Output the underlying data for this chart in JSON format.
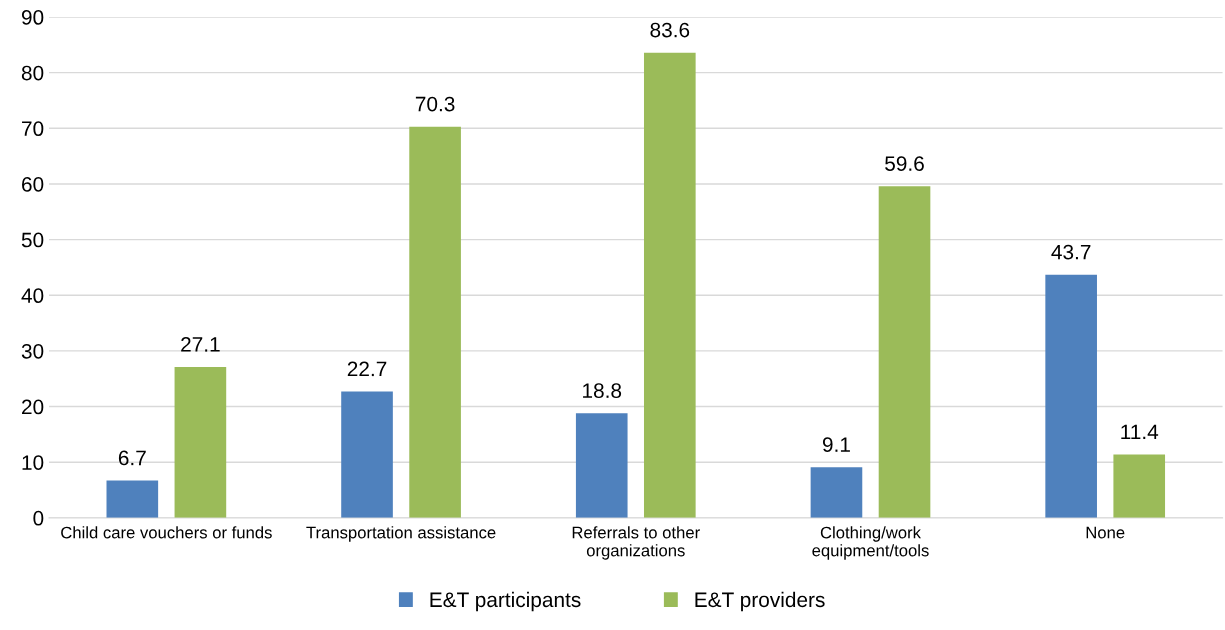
{
  "chart_data": {
    "type": "bar",
    "categories": [
      "Child care vouchers or funds",
      "Transportation assistance",
      "Referrals to other\norganizations",
      "Clothing/work\nequipment/tools",
      "None"
    ],
    "series": [
      {
        "name": "E&T participants",
        "color": "#4f81bd",
        "values": [
          6.7,
          22.7,
          18.8,
          9.1,
          43.7
        ]
      },
      {
        "name": "E&T providers",
        "color": "#9bbb59",
        "values": [
          27.1,
          70.3,
          83.6,
          59.6,
          11.4
        ]
      }
    ],
    "ylim": [
      0,
      90
    ],
    "yticks": [
      0,
      10,
      20,
      30,
      40,
      50,
      60,
      70,
      80,
      90
    ],
    "grid": "y",
    "legend": "bottom",
    "data_labels": true
  }
}
